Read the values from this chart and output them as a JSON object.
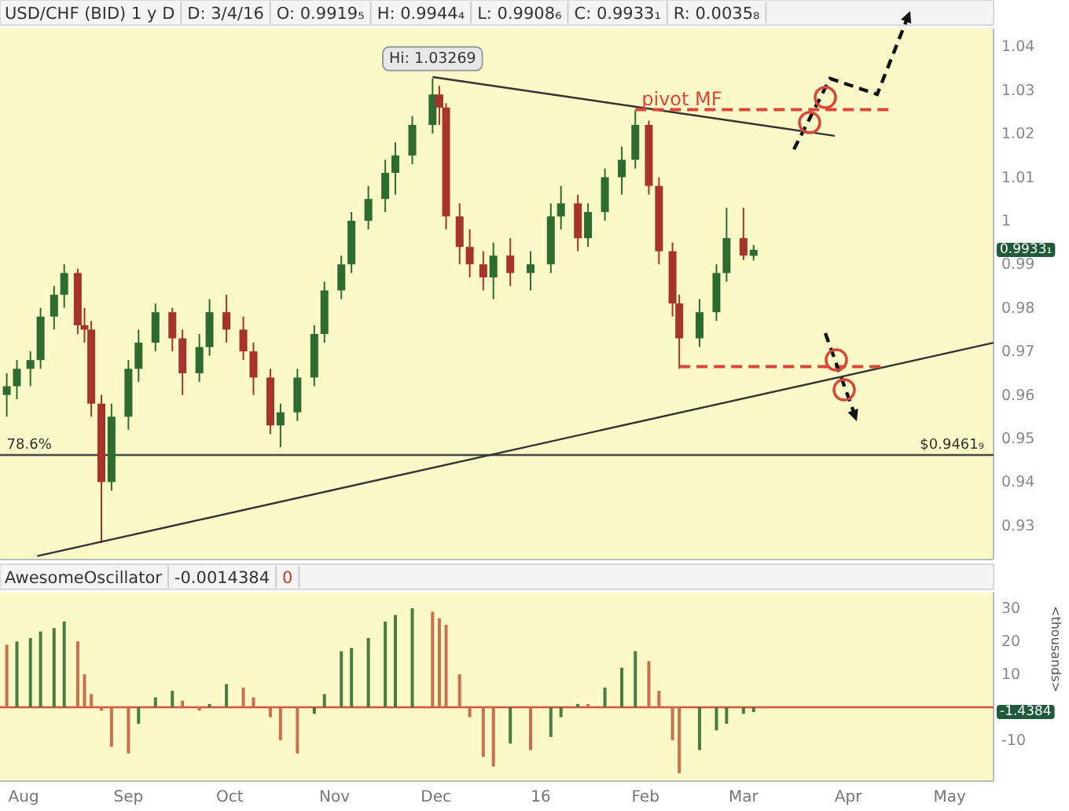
{
  "chart_data": [
    {
      "type": "candlestick",
      "title": "USD/CHF (BID) 1 y D",
      "annotations": [
        "D: 3/4/16",
        "O: 0.9919₅",
        "H: 0.9944₄",
        "L: 0.9908₆",
        "C: 0.9933₁",
        "R: 0.0035₈",
        {
          "text": "78.6%",
          "x": "2015-07-27",
          "y": 0.94619
        },
        "0.9933₁"
      ],
      "x": [
        "2015-07-27",
        "2015-07-30",
        "2015-08-03",
        "2015-08-06",
        "2015-08-10",
        "2015-08-13",
        "2015-08-17",
        "2015-08-19",
        "2015-08-21",
        "2015-08-24",
        "2015-08-27",
        "2015-09-01",
        "2015-09-04",
        "2015-09-09",
        "2015-09-14",
        "2015-09-17",
        "2015-09-22",
        "2015-09-25",
        "2015-09-30",
        "2015-10-05",
        "2015-10-08",
        "2015-10-13",
        "2015-10-16",
        "2015-10-21",
        "2015-10-26",
        "2015-10-29",
        "2015-11-03",
        "2015-11-06",
        "2015-11-11",
        "2015-11-16",
        "2015-11-19",
        "2015-11-24",
        "2015-11-30",
        "2015-12-02",
        "2015-12-04",
        "2015-12-08",
        "2015-12-11",
        "2015-12-15",
        "2015-12-18",
        "2015-12-23",
        "2015-12-29",
        "2016-01-04",
        "2016-01-07",
        "2016-01-12",
        "2016-01-15",
        "2016-01-20",
        "2016-01-25",
        "2016-01-29",
        "2016-02-02",
        "2016-02-05",
        "2016-02-09",
        "2016-02-11",
        "2016-02-17",
        "2016-02-22",
        "2016-02-25",
        "2016-03-01",
        "2016-03-04"
      ],
      "ohlc": [
        [
          0.96,
          0.965,
          0.955,
          0.962
        ],
        [
          0.962,
          0.968,
          0.959,
          0.966
        ],
        [
          0.966,
          0.97,
          0.962,
          0.968
        ],
        [
          0.968,
          0.98,
          0.966,
          0.978
        ],
        [
          0.978,
          0.985,
          0.975,
          0.983
        ],
        [
          0.983,
          0.99,
          0.98,
          0.988
        ],
        [
          0.988,
          0.989,
          0.974,
          0.976
        ],
        [
          0.976,
          0.98,
          0.972,
          0.975
        ],
        [
          0.975,
          0.977,
          0.955,
          0.958
        ],
        [
          0.958,
          0.96,
          0.926,
          0.94
        ],
        [
          0.94,
          0.958,
          0.938,
          0.955
        ],
        [
          0.955,
          0.968,
          0.952,
          0.966
        ],
        [
          0.966,
          0.975,
          0.963,
          0.972
        ],
        [
          0.972,
          0.981,
          0.97,
          0.979
        ],
        [
          0.979,
          0.98,
          0.97,
          0.973
        ],
        [
          0.973,
          0.975,
          0.96,
          0.965
        ],
        [
          0.965,
          0.974,
          0.963,
          0.971
        ],
        [
          0.971,
          0.982,
          0.969,
          0.979
        ],
        [
          0.979,
          0.983,
          0.972,
          0.975
        ],
        [
          0.975,
          0.978,
          0.968,
          0.97
        ],
        [
          0.97,
          0.972,
          0.96,
          0.964
        ],
        [
          0.964,
          0.966,
          0.951,
          0.953
        ],
        [
          0.953,
          0.958,
          0.948,
          0.956
        ],
        [
          0.956,
          0.966,
          0.954,
          0.964
        ],
        [
          0.964,
          0.976,
          0.962,
          0.974
        ],
        [
          0.974,
          0.986,
          0.972,
          0.984
        ],
        [
          0.984,
          0.992,
          0.982,
          0.99
        ],
        [
          0.99,
          1.002,
          0.988,
          1.0
        ],
        [
          1.0,
          1.008,
          0.998,
          1.005
        ],
        [
          1.005,
          1.014,
          1.002,
          1.011
        ],
        [
          1.011,
          1.018,
          1.006,
          1.015
        ],
        [
          1.015,
          1.024,
          1.013,
          1.022
        ],
        [
          1.022,
          1.03269,
          1.02,
          1.029
        ],
        [
          1.029,
          1.031,
          1.022,
          1.026
        ],
        [
          1.026,
          1.027,
          0.998,
          1.001
        ],
        [
          1.001,
          1.004,
          0.99,
          0.994
        ],
        [
          0.994,
          0.998,
          0.987,
          0.99
        ],
        [
          0.99,
          0.993,
          0.984,
          0.987
        ],
        [
          0.987,
          0.995,
          0.982,
          0.992
        ],
        [
          0.992,
          0.996,
          0.985,
          0.988
        ],
        [
          0.988,
          0.993,
          0.984,
          0.99
        ],
        [
          0.99,
          1.004,
          0.988,
          1.001
        ],
        [
          1.001,
          1.008,
          0.998,
          1.004
        ],
        [
          1.004,
          1.006,
          0.993,
          0.996
        ],
        [
          0.996,
          1.004,
          0.994,
          1.002
        ],
        [
          1.002,
          1.012,
          1.0,
          1.01
        ],
        [
          1.01,
          1.017,
          1.006,
          1.014
        ],
        [
          1.014,
          1.0253,
          1.012,
          1.022
        ],
        [
          1.022,
          1.023,
          1.006,
          1.008
        ],
        [
          1.008,
          1.01,
          0.99,
          0.993
        ],
        [
          0.993,
          0.995,
          0.978,
          0.981
        ],
        [
          0.981,
          0.983,
          0.966,
          0.973
        ],
        [
          0.973,
          0.982,
          0.971,
          0.979
        ],
        [
          0.979,
          0.99,
          0.977,
          0.988
        ],
        [
          0.988,
          1.003,
          0.986,
          0.996
        ],
        [
          0.996,
          1.003,
          0.991,
          0.992
        ],
        [
          0.99195,
          0.99444,
          0.99086,
          0.99331
        ]
      ],
      "colors": [
        "#2e6b2e",
        "#2e6b2e",
        "#2e6b2e",
        "#2e6b2e",
        "#2e6b2e",
        "#2e6b2e",
        "#a5342a",
        "#a5342a",
        "#a5342a",
        "#a5342a",
        "#2e6b2e",
        "#2e6b2e",
        "#2e6b2e",
        "#2e6b2e",
        "#a5342a",
        "#a5342a",
        "#2e6b2e",
        "#2e6b2e",
        "#a5342a",
        "#a5342a",
        "#a5342a",
        "#a5342a",
        "#2e6b2e",
        "#2e6b2e",
        "#2e6b2e",
        "#2e6b2e",
        "#2e6b2e",
        "#2e6b2e",
        "#2e6b2e",
        "#2e6b2e",
        "#2e6b2e",
        "#2e6b2e",
        "#2e6b2e",
        "#a5342a",
        "#a5342a",
        "#a5342a",
        "#a5342a",
        "#a5342a",
        "#2e6b2e",
        "#a5342a",
        "#2e6b2e",
        "#2e6b2e",
        "#2e6b2e",
        "#a5342a",
        "#2e6b2e",
        "#2e6b2e",
        "#2e6b2e",
        "#2e6b2e",
        "#a5342a",
        "#a5342a",
        "#a5342a",
        "#a5342a",
        "#2e6b2e",
        "#2e6b2e",
        "#2e6b2e",
        "#a5342a",
        "#2e6b2e"
      ],
      "value_labels": [
        null,
        null,
        null,
        null,
        null,
        null,
        null,
        null,
        null,
        null,
        null,
        null,
        null,
        null,
        null,
        null,
        null,
        null,
        null,
        null,
        null,
        null,
        null,
        null,
        null,
        null,
        null,
        null,
        null,
        null,
        null,
        null,
        "Hi: 1.03269",
        null,
        null,
        null,
        null,
        null,
        null,
        null,
        null,
        null,
        null,
        null,
        null,
        null,
        null,
        null,
        null,
        null,
        null,
        null,
        null,
        null,
        null,
        null,
        null
      ],
      "series": [
        {
          "type": "line",
          "x": [
            "2015-11-30",
            "2016-03-28"
          ],
          "values": [
            1.033,
            1.0195
          ],
          "color": "#333333",
          "line_style": "solid"
        },
        {
          "type": "line",
          "x": [
            "2015-08-05",
            "2016-05-14"
          ],
          "values": [
            0.923,
            0.972
          ],
          "color": "#333333",
          "line_style": "solid"
        },
        {
          "type": "line",
          "name": "pivot MF",
          "x": [
            "2016-01-29",
            "2016-04-14"
          ],
          "values": [
            1.0255,
            1.0255
          ],
          "color": "#d9463a",
          "line_style": "dashed"
        },
        {
          "type": "line",
          "x": [
            "2016-02-11",
            "2016-04-12"
          ],
          "values": [
            0.9665,
            0.9665
          ],
          "color": "#d9463a",
          "line_style": "dashed"
        }
      ],
      "ref_lines": [
        {
          "axis": "y",
          "value": 0.94619,
          "label": "$0.9461₉",
          "color": "#444444"
        }
      ],
      "xlim": [
        "2015-07-25",
        "2016-05-14"
      ],
      "ylim": [
        0.9222,
        1.0442
      ],
      "yticks": [
        0.93,
        0.94,
        0.95,
        0.96,
        0.97,
        0.98,
        0.99,
        1,
        1.01,
        1.02,
        1.03,
        1.04
      ],
      "tick_labels": "y",
      "grid": false
    },
    {
      "type": "bar",
      "title": "AwesomeOscillator",
      "ylabel": "<thousands>",
      "annotations": [
        "-0.0014384",
        "0",
        "-1.4384"
      ],
      "x": [
        "2015-07-27",
        "2015-07-30",
        "2015-08-03",
        "2015-08-06",
        "2015-08-10",
        "2015-08-13",
        "2015-08-17",
        "2015-08-19",
        "2015-08-21",
        "2015-08-24",
        "2015-08-27",
        "2015-09-01",
        "2015-09-04",
        "2015-09-09",
        "2015-09-14",
        "2015-09-17",
        "2015-09-22",
        "2015-09-25",
        "2015-09-30",
        "2015-10-05",
        "2015-10-08",
        "2015-10-13",
        "2015-10-16",
        "2015-10-21",
        "2015-10-26",
        "2015-10-29",
        "2015-11-03",
        "2015-11-06",
        "2015-11-11",
        "2015-11-16",
        "2015-11-19",
        "2015-11-24",
        "2015-11-30",
        "2015-12-02",
        "2015-12-04",
        "2015-12-08",
        "2015-12-11",
        "2015-12-15",
        "2015-12-18",
        "2015-12-23",
        "2015-12-29",
        "2016-01-04",
        "2016-01-07",
        "2016-01-12",
        "2016-01-15",
        "2016-01-20",
        "2016-01-25",
        "2016-01-29",
        "2016-02-02",
        "2016-02-05",
        "2016-02-09",
        "2016-02-11",
        "2016-02-17",
        "2016-02-22",
        "2016-02-25",
        "2016-03-01",
        "2016-03-04"
      ],
      "values": [
        19,
        20,
        21,
        23,
        24,
        26,
        20,
        10,
        4,
        -1,
        -12,
        -14,
        -5,
        3,
        5,
        2,
        -1,
        1,
        7,
        6,
        3,
        -3,
        -10,
        -14,
        -2,
        4,
        17,
        18,
        21,
        26,
        28,
        30,
        29,
        27,
        25,
        10,
        -3,
        -15,
        -18,
        -11,
        -13,
        -9,
        -3,
        1,
        1,
        6,
        12,
        17,
        14,
        5,
        -10,
        -20,
        -13,
        -7,
        -5,
        -2,
        -1.4384
      ],
      "colors": [
        "#c8704f",
        "#4a7c3f",
        "#4a7c3f",
        "#4a7c3f",
        "#4a7c3f",
        "#4a7c3f",
        "#c8704f",
        "#c8704f",
        "#c8704f",
        "#c8704f",
        "#c8704f",
        "#c8704f",
        "#4a7c3f",
        "#4a7c3f",
        "#4a7c3f",
        "#c8704f",
        "#c8704f",
        "#4a7c3f",
        "#4a7c3f",
        "#c8704f",
        "#c8704f",
        "#c8704f",
        "#c8704f",
        "#c8704f",
        "#4a7c3f",
        "#4a7c3f",
        "#4a7c3f",
        "#4a7c3f",
        "#4a7c3f",
        "#4a7c3f",
        "#4a7c3f",
        "#4a7c3f",
        "#c8704f",
        "#c8704f",
        "#c8704f",
        "#c8704f",
        "#c8704f",
        "#c8704f",
        "#c8704f",
        "#4a7c3f",
        "#c8704f",
        "#4a7c3f",
        "#4a7c3f",
        "#4a7c3f",
        "#c8704f",
        "#4a7c3f",
        "#4a7c3f",
        "#4a7c3f",
        "#c8704f",
        "#c8704f",
        "#c8704f",
        "#c8704f",
        "#4a7c3f",
        "#4a7c3f",
        "#4a7c3f",
        "#4a7c3f",
        "#4a7c3f"
      ],
      "ref_lines": [
        {
          "axis": "y",
          "value": 0,
          "color": "#d9503a"
        }
      ],
      "xlim": [
        "2015-07-25",
        "2016-05-14"
      ],
      "xticks": [
        {
          "value": "2015-08-01",
          "label": "Aug"
        },
        {
          "value": "2015-09-01",
          "label": "Sep"
        },
        {
          "value": "2015-10-01",
          "label": "Oct"
        },
        {
          "value": "2015-11-01",
          "label": "Nov"
        },
        {
          "value": "2015-12-01",
          "label": "Dec"
        },
        {
          "value": "2016-01-01",
          "label": "16"
        },
        {
          "value": "2016-02-01",
          "label": "Feb"
        },
        {
          "value": "2016-03-01",
          "label": "Mar"
        },
        {
          "value": "2016-04-01",
          "label": "Apr"
        },
        {
          "value": "2016-05-01",
          "label": "May"
        }
      ],
      "ylim": [
        -22.4,
        34.8
      ],
      "yticks": [
        30,
        20,
        10,
        -10
      ],
      "grid": false
    }
  ]
}
